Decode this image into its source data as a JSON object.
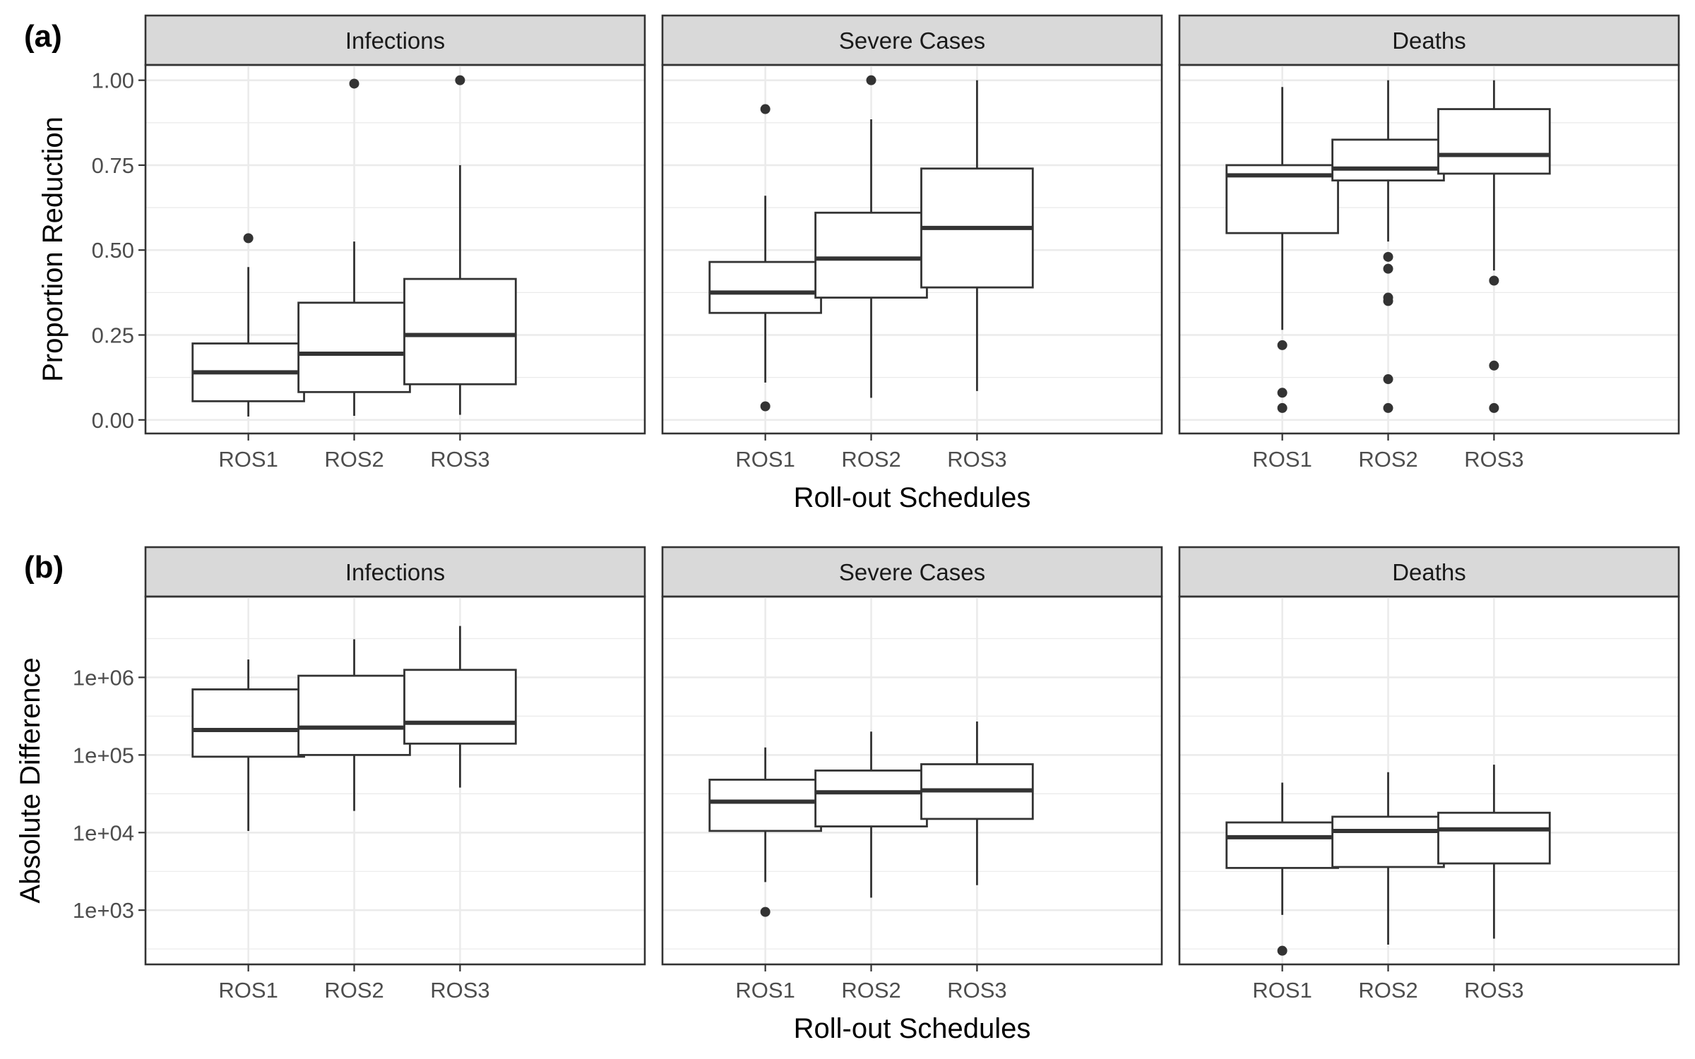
{
  "chart_data": [
    {
      "type": "box",
      "panel_label": "(a)",
      "ylabel": "Proportion Reduction",
      "xlabel": "Roll-out Schedules",
      "ylim": [
        -0.04,
        1.045
      ],
      "yscale": "linear",
      "yticks": [
        0,
        0.25,
        0.5,
        0.75,
        1.0
      ],
      "ytick_labels": [
        "0.00",
        "0.25",
        "0.50",
        "0.75",
        "1.00"
      ],
      "categories": [
        "ROS1",
        "ROS2",
        "ROS3"
      ],
      "facets": [
        {
          "name": "Infections",
          "boxes": [
            {
              "category": "ROS1",
              "whisker_low": 0.01,
              "q1": 0.055,
              "median": 0.14,
              "q3": 0.225,
              "whisker_high": 0.45,
              "outliers": [
                0.535
              ]
            },
            {
              "category": "ROS2",
              "whisker_low": 0.012,
              "q1": 0.082,
              "median": 0.195,
              "q3": 0.345,
              "whisker_high": 0.525,
              "outliers": [
                0.99
              ]
            },
            {
              "category": "ROS3",
              "whisker_low": 0.015,
              "q1": 0.105,
              "median": 0.25,
              "q3": 0.415,
              "whisker_high": 0.75,
              "outliers": [
                1.0
              ]
            }
          ]
        },
        {
          "name": "Severe Cases",
          "boxes": [
            {
              "category": "ROS1",
              "whisker_low": 0.11,
              "q1": 0.315,
              "median": 0.375,
              "q3": 0.465,
              "whisker_high": 0.66,
              "outliers": [
                0.04,
                0.915
              ]
            },
            {
              "category": "ROS2",
              "whisker_low": 0.065,
              "q1": 0.36,
              "median": 0.475,
              "q3": 0.61,
              "whisker_high": 0.885,
              "outliers": [
                1.0
              ]
            },
            {
              "category": "ROS3",
              "whisker_low": 0.085,
              "q1": 0.39,
              "median": 0.565,
              "q3": 0.74,
              "whisker_high": 1.0,
              "outliers": []
            }
          ]
        },
        {
          "name": "Deaths",
          "boxes": [
            {
              "category": "ROS1",
              "whisker_low": 0.265,
              "q1": 0.55,
              "median": 0.72,
              "q3": 0.75,
              "whisker_high": 0.98,
              "outliers": [
                0.035,
                0.08,
                0.22
              ]
            },
            {
              "category": "ROS2",
              "whisker_low": 0.525,
              "q1": 0.705,
              "median": 0.74,
              "q3": 0.825,
              "whisker_high": 1.0,
              "outliers": [
                0.035,
                0.12,
                0.35,
                0.36,
                0.445,
                0.48
              ]
            },
            {
              "category": "ROS3",
              "whisker_low": 0.44,
              "q1": 0.725,
              "median": 0.78,
              "q3": 0.915,
              "whisker_high": 1.0,
              "outliers": [
                0.035,
                0.16,
                0.41
              ]
            }
          ]
        }
      ]
    },
    {
      "type": "box",
      "panel_label": "(b)",
      "ylabel": "Absolute Difference",
      "xlabel": "Roll-out Schedules",
      "ylim": [
        200,
        11000000
      ],
      "yscale": "log10",
      "yticks": [
        1000,
        10000,
        100000,
        1000000
      ],
      "ytick_labels": [
        "1e+03",
        "1e+04",
        "1e+05",
        "1e+06"
      ],
      "categories": [
        "ROS1",
        "ROS2",
        "ROS3"
      ],
      "facets": [
        {
          "name": "Infections",
          "boxes": [
            {
              "category": "ROS1",
              "whisker_low": 10500,
              "q1": 95000,
              "median": 210000,
              "q3": 700000,
              "whisker_high": 1700000,
              "outliers": []
            },
            {
              "category": "ROS2",
              "whisker_low": 19000,
              "q1": 100000,
              "median": 225000,
              "q3": 1050000,
              "whisker_high": 3100000,
              "outliers": []
            },
            {
              "category": "ROS3",
              "whisker_low": 38000,
              "q1": 140000,
              "median": 260000,
              "q3": 1250000,
              "whisker_high": 4600000,
              "outliers": []
            }
          ]
        },
        {
          "name": "Severe Cases",
          "boxes": [
            {
              "category": "ROS1",
              "whisker_low": 2300,
              "q1": 10500,
              "median": 25000,
              "q3": 48000,
              "whisker_high": 125000,
              "outliers": [
                950
              ]
            },
            {
              "category": "ROS2",
              "whisker_low": 1450,
              "q1": 12000,
              "median": 33000,
              "q3": 63000,
              "whisker_high": 200000,
              "outliers": []
            },
            {
              "category": "ROS3",
              "whisker_low": 2100,
              "q1": 15000,
              "median": 35000,
              "q3": 76000,
              "whisker_high": 270000,
              "outliers": []
            }
          ]
        },
        {
          "name": "Deaths",
          "boxes": [
            {
              "category": "ROS1",
              "whisker_low": 870,
              "q1": 3500,
              "median": 8700,
              "q3": 13500,
              "whisker_high": 44000,
              "outliers": [
                300
              ]
            },
            {
              "category": "ROS2",
              "whisker_low": 360,
              "q1": 3600,
              "median": 10500,
              "q3": 16000,
              "whisker_high": 60000,
              "outliers": []
            },
            {
              "category": "ROS3",
              "whisker_low": 430,
              "q1": 4000,
              "median": 11000,
              "q3": 18000,
              "whisker_high": 75000,
              "outliers": []
            }
          ]
        }
      ]
    }
  ]
}
